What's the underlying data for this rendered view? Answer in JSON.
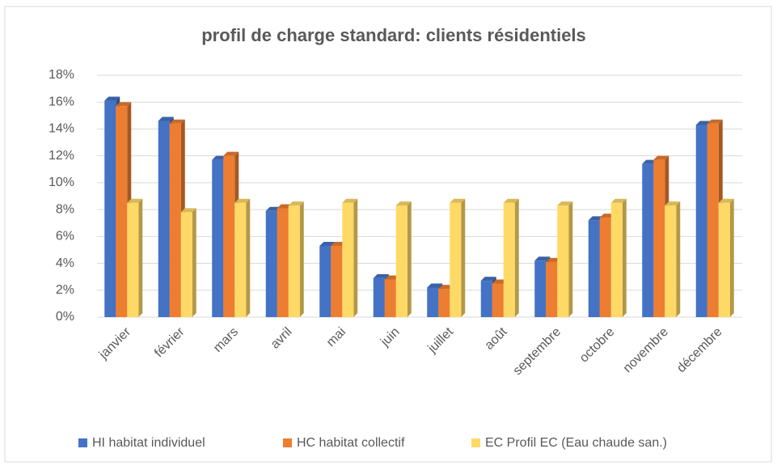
{
  "chart_data": {
    "type": "bar",
    "title": "profil de charge standard: clients résidentiels",
    "categories": [
      "janvier",
      "février",
      "mars",
      "avril",
      "mai",
      "juin",
      "juillet",
      "août",
      "septembre",
      "octobre",
      "novembre",
      "décembre"
    ],
    "series": [
      {
        "name": "HI habitat individuel",
        "color": "#4472c4",
        "values": [
          16.1,
          14.6,
          11.7,
          7.9,
          5.3,
          2.9,
          2.2,
          2.7,
          4.2,
          7.2,
          11.4,
          14.3
        ]
      },
      {
        "name": "HC habitat collectif",
        "color": "#ed7d31",
        "values": [
          15.7,
          14.4,
          12.0,
          8.1,
          5.3,
          2.8,
          2.1,
          2.5,
          4.1,
          7.4,
          11.7,
          14.4
        ]
      },
      {
        "name": "EC Profil EC (Eau chaude san.)",
        "color": "#ffd966",
        "values": [
          8.5,
          7.8,
          8.5,
          8.3,
          8.5,
          8.3,
          8.5,
          8.5,
          8.3,
          8.5,
          8.3,
          8.5
        ]
      }
    ],
    "ylim": [
      0,
      18
    ],
    "yticks": [
      {
        "value": 0,
        "label": "0%"
      },
      {
        "value": 2,
        "label": "2%"
      },
      {
        "value": 4,
        "label": "4%"
      },
      {
        "value": 6,
        "label": "6%"
      },
      {
        "value": 8,
        "label": "8%"
      },
      {
        "value": 10,
        "label": "10%"
      },
      {
        "value": 12,
        "label": "12%"
      },
      {
        "value": 14,
        "label": "14%"
      },
      {
        "value": 16,
        "label": "16%"
      },
      {
        "value": 18,
        "label": "18%"
      }
    ],
    "grid": true
  }
}
